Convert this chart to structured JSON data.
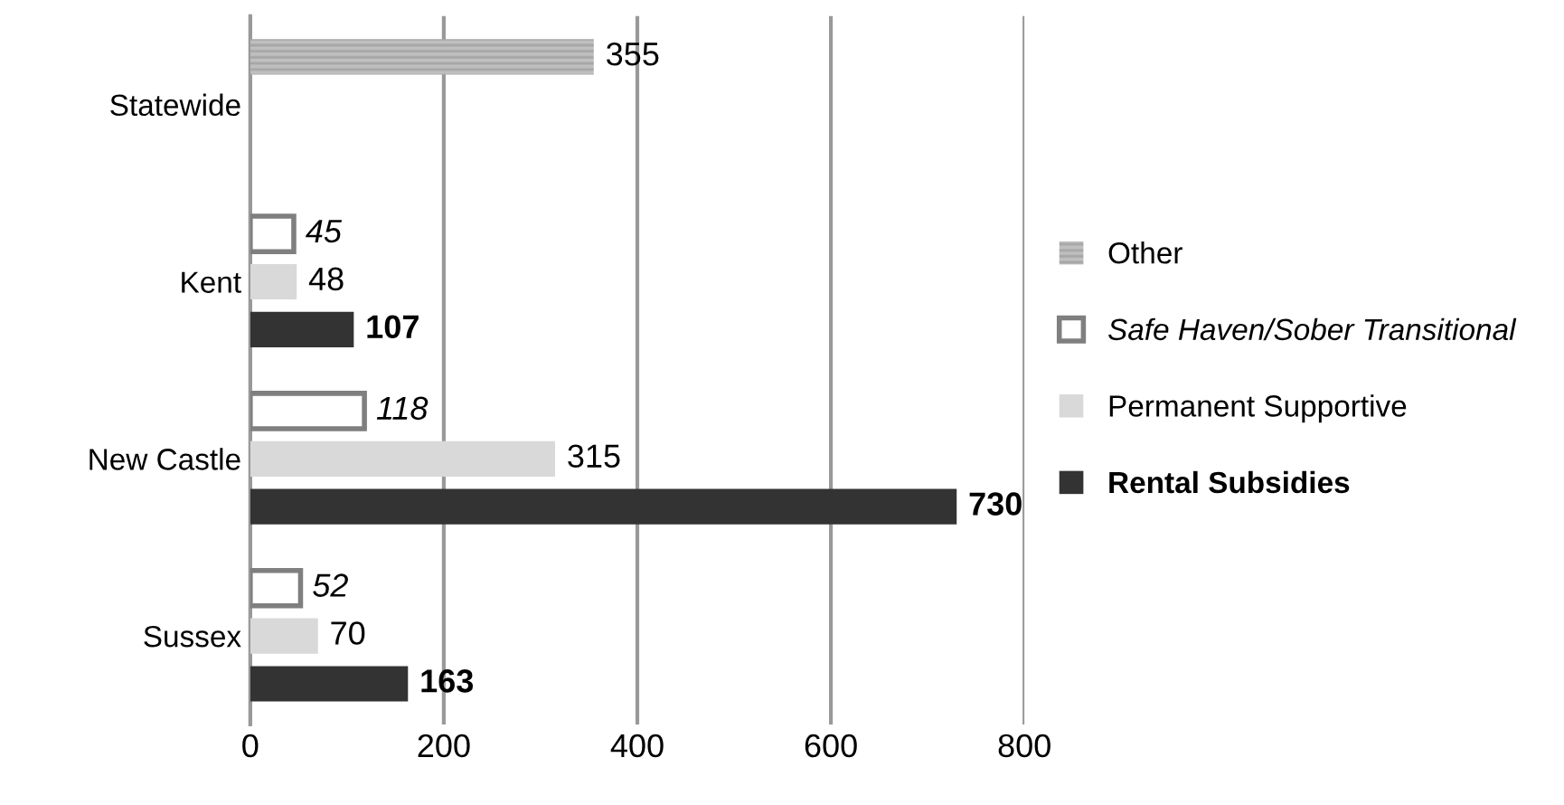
{
  "chart_data": {
    "type": "bar",
    "orientation": "horizontal",
    "categories": [
      "Statewide",
      "Kent",
      "New Castle",
      "Sussex"
    ],
    "series": [
      {
        "name": "Rental Subsidies",
        "color": "#333333",
        "values": [
          null,
          107,
          730,
          163
        ]
      },
      {
        "name": "Permanent Supportive",
        "color": "#d9d9d9",
        "values": [
          null,
          48,
          315,
          70
        ]
      },
      {
        "name": "Safe Haven/Sober Transitional",
        "color": "#ffffff",
        "values": [
          null,
          45,
          118,
          52
        ]
      },
      {
        "name": "Other",
        "color": "#bfbfbf",
        "values": [
          355,
          null,
          null,
          null
        ]
      }
    ],
    "xlim": [
      0,
      800
    ],
    "xticks": [
      0,
      200,
      400,
      600,
      800
    ],
    "grid": "x",
    "legend": "right",
    "data_labels": true
  }
}
